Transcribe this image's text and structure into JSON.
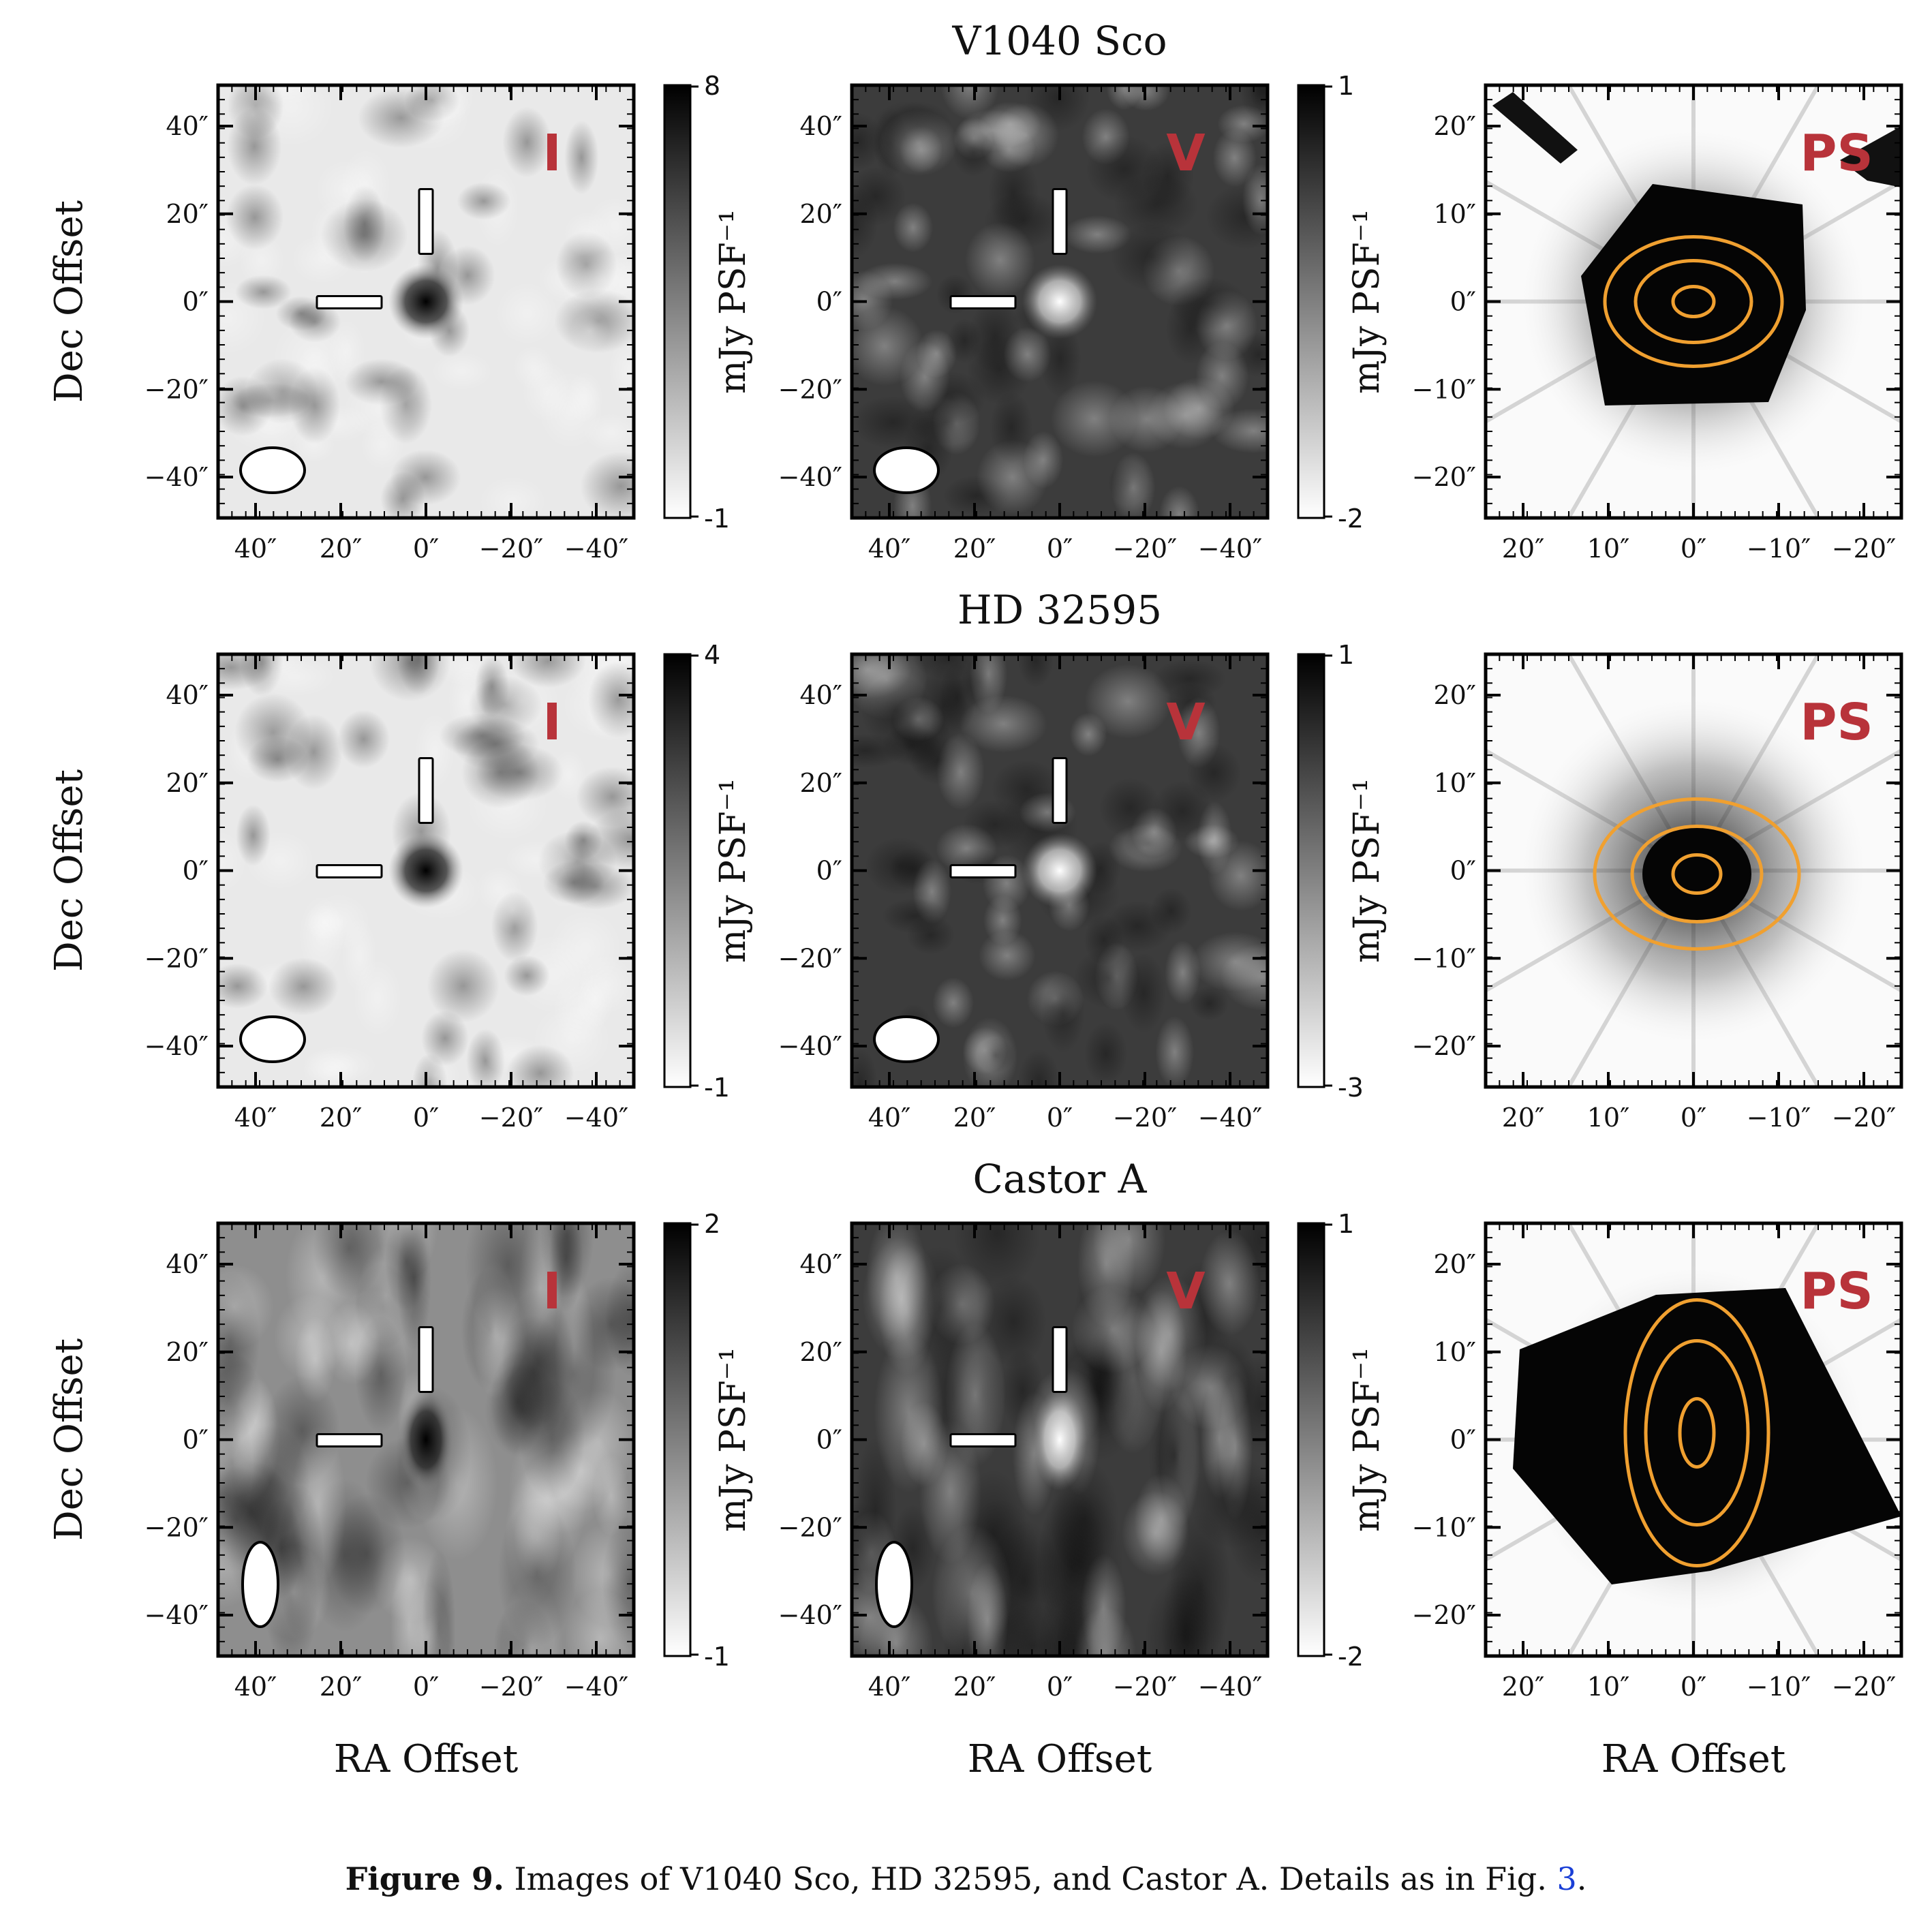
{
  "figure": {
    "rows": [
      {
        "title": "V1040 Sco",
        "panels": [
          {
            "kind": "radio",
            "label": "I",
            "bg": "light",
            "source": "dark",
            "ticks_x": [
              "40″",
              "20″",
              "0″",
              "−20″",
              "−40″"
            ],
            "ticks_y": [
              "40″",
              "20″",
              "0″",
              "−20″",
              "−40″"
            ],
            "colorbar": {
              "label": "mJy PSF⁻¹",
              "max": "8",
              "min": "-1"
            }
          },
          {
            "kind": "radio",
            "label": "V",
            "bg": "dark",
            "source": "bright",
            "ticks_x": [
              "40″",
              "20″",
              "0″",
              "−20″",
              "−40″"
            ],
            "ticks_y": [
              "40″",
              "20″",
              "0″",
              "−20″",
              "−40″"
            ],
            "colorbar": {
              "label": "mJy PSF⁻¹",
              "max": "1",
              "min": "-2"
            }
          },
          {
            "kind": "optical",
            "label": "PS",
            "ticks_x": [
              "20″",
              "10″",
              "0″",
              "−10″",
              "−20″"
            ],
            "ticks_y": [
              "20″",
              "10″",
              "0″",
              "−10″",
              "−20″"
            ]
          }
        ]
      },
      {
        "title": "HD 32595",
        "panels": [
          {
            "kind": "radio",
            "label": "I",
            "bg": "light",
            "source": "dark",
            "ticks_x": [
              "40″",
              "20″",
              "0″",
              "−20″",
              "−40″"
            ],
            "ticks_y": [
              "40″",
              "20″",
              "0″",
              "−20″",
              "−40″"
            ],
            "colorbar": {
              "label": "mJy PSF⁻¹",
              "max": "4",
              "min": "-1"
            }
          },
          {
            "kind": "radio",
            "label": "V",
            "bg": "dark",
            "source": "bright",
            "ticks_x": [
              "40″",
              "20″",
              "0″",
              "−20″",
              "−40″"
            ],
            "ticks_y": [
              "40″",
              "20″",
              "0″",
              "−20″",
              "−40″"
            ],
            "colorbar": {
              "label": "mJy PSF⁻¹",
              "max": "1",
              "min": "-3"
            }
          },
          {
            "kind": "optical",
            "label": "PS",
            "ticks_x": [
              "20″",
              "10″",
              "0″",
              "−10″",
              "−20″"
            ],
            "ticks_y": [
              "20″",
              "10″",
              "0″",
              "−10″",
              "−20″"
            ]
          }
        ]
      },
      {
        "title": "Castor A",
        "panels": [
          {
            "kind": "radio",
            "label": "I",
            "bg": "mid",
            "source": "dark",
            "ticks_x": [
              "40″",
              "20″",
              "0″",
              "−20″",
              "−40″"
            ],
            "ticks_y": [
              "40″",
              "20″",
              "0″",
              "−20″",
              "−40″"
            ],
            "colorbar": {
              "label": "mJy PSF⁻¹",
              "max": "2",
              "min": "-1"
            }
          },
          {
            "kind": "radio",
            "label": "V",
            "bg": "dark",
            "source": "bright",
            "ticks_x": [
              "40″",
              "20″",
              "0″",
              "−20″",
              "−40″"
            ],
            "ticks_y": [
              "40″",
              "20″",
              "0″",
              "−20″",
              "−40″"
            ],
            "colorbar": {
              "label": "mJy PSF⁻¹",
              "max": "1",
              "min": "-2"
            }
          },
          {
            "kind": "optical",
            "label": "PS",
            "ticks_x": [
              "20″",
              "10″",
              "0″",
              "−10″",
              "−20″"
            ],
            "ticks_y": [
              "20″",
              "10″",
              "0″",
              "−10″",
              "−20″"
            ]
          }
        ]
      }
    ],
    "ylabel": "Dec Offset",
    "xlabel": "RA Offset",
    "contour_color": "#f0a030",
    "label_color": "#b8333a"
  },
  "caption": {
    "bold": "Figure 9.",
    "text": " Images of V1040 Sco, HD 32595, and Castor A. Details as in Fig. ",
    "link": "3",
    "end": "."
  }
}
